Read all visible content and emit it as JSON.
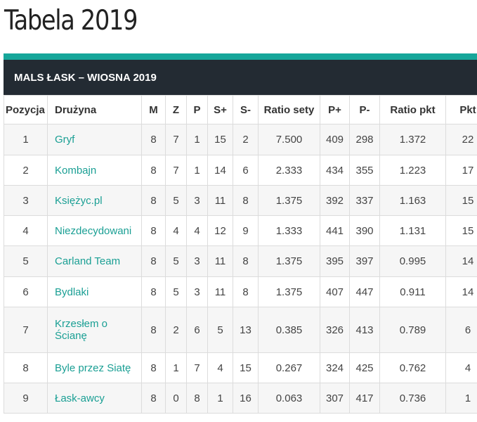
{
  "page": {
    "title": "Tabela 2019"
  },
  "colors": {
    "accent": "#17a69a",
    "header_bg": "#232b33",
    "link": "#1a9f94",
    "row_alt": "#f6f6f6"
  },
  "table": {
    "title": "MALS ŁASK – WIOSNA 2019",
    "columns": [
      "Pozycja",
      "Drużyna",
      "M",
      "Z",
      "P",
      "S+",
      "S-",
      "Ratio sety",
      "P+",
      "P-",
      "Ratio pkt",
      "Pkt"
    ],
    "rows": [
      [
        "1",
        "Gryf",
        "8",
        "7",
        "1",
        "15",
        "2",
        "7.500",
        "409",
        "298",
        "1.372",
        "22"
      ],
      [
        "2",
        "Kombajn",
        "8",
        "7",
        "1",
        "14",
        "6",
        "2.333",
        "434",
        "355",
        "1.223",
        "17"
      ],
      [
        "3",
        "Księżyc.pl",
        "8",
        "5",
        "3",
        "11",
        "8",
        "1.375",
        "392",
        "337",
        "1.163",
        "15"
      ],
      [
        "4",
        "Niezdecydowani",
        "8",
        "4",
        "4",
        "12",
        "9",
        "1.333",
        "441",
        "390",
        "1.131",
        "15"
      ],
      [
        "5",
        "Carland Team",
        "8",
        "5",
        "3",
        "11",
        "8",
        "1.375",
        "395",
        "397",
        "0.995",
        "14"
      ],
      [
        "6",
        "Bydlaki",
        "8",
        "5",
        "3",
        "11",
        "8",
        "1.375",
        "407",
        "447",
        "0.911",
        "14"
      ],
      [
        "7",
        "Krzesłem o Ścianę",
        "8",
        "2",
        "6",
        "5",
        "13",
        "0.385",
        "326",
        "413",
        "0.789",
        "6"
      ],
      [
        "8",
        "Byle przez Siatę",
        "8",
        "1",
        "7",
        "4",
        "15",
        "0.267",
        "324",
        "425",
        "0.762",
        "4"
      ],
      [
        "9",
        "Łask-awcy",
        "8",
        "0",
        "8",
        "1",
        "16",
        "0.063",
        "307",
        "417",
        "0.736",
        "1"
      ]
    ]
  }
}
